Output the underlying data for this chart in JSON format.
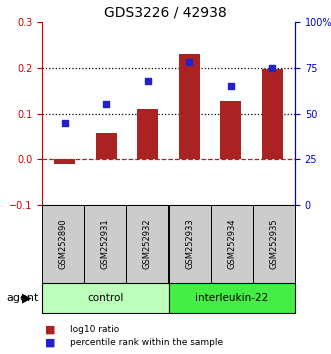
{
  "title": "GDS3226 / 42938",
  "samples": [
    "GSM252890",
    "GSM252931",
    "GSM252932",
    "GSM252933",
    "GSM252934",
    "GSM252935"
  ],
  "log10_ratio": [
    -0.01,
    0.058,
    0.11,
    0.23,
    0.128,
    0.197
  ],
  "percentile_rank": [
    45,
    55,
    68,
    78,
    65,
    75
  ],
  "bar_color": "#aa2222",
  "dot_color": "#2222cc",
  "ylim_left": [
    -0.1,
    0.3
  ],
  "ylim_right": [
    0,
    100
  ],
  "yticks_left": [
    -0.1,
    0.0,
    0.1,
    0.2,
    0.3
  ],
  "yticks_right": [
    0,
    25,
    50,
    75,
    100
  ],
  "yticklabels_right": [
    "0",
    "25",
    "50",
    "75",
    "100%"
  ],
  "dotted_lines": [
    0.1,
    0.2
  ],
  "zero_line": 0.0,
  "groups": [
    {
      "label": "control",
      "indices": [
        0,
        1,
        2
      ],
      "color": "#bbffbb"
    },
    {
      "label": "interleukin-22",
      "indices": [
        3,
        4,
        5
      ],
      "color": "#44ee44"
    }
  ],
  "agent_label": "agent",
  "legend": [
    {
      "label": "log10 ratio",
      "color": "#aa2222"
    },
    {
      "label": "percentile rank within the sample",
      "color": "#2222cc"
    }
  ],
  "bar_width": 0.5,
  "left_tick_color": "#cc0000",
  "right_tick_color": "#0000cc"
}
